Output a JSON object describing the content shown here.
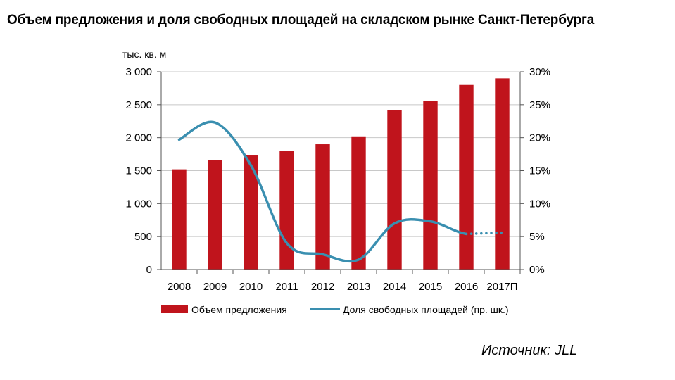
{
  "title": "Объем предложения и доля свободных площадей на складском рынке Санкт-Петербурга",
  "source": "Источник: JLL",
  "chart_data": {
    "type": "bar",
    "categories": [
      "2008",
      "2009",
      "2010",
      "2011",
      "2012",
      "2013",
      "2014",
      "2015",
      "2016",
      "2017П"
    ],
    "y_unit": "тыс. кв. м",
    "ylim": [
      0,
      3000
    ],
    "y_ticks": [
      "0",
      "500",
      "1 000",
      "1 500",
      "2 000",
      "2 500",
      "3 000"
    ],
    "y2lim": [
      0,
      30
    ],
    "y2_ticks": [
      "0%",
      "5%",
      "10%",
      "15%",
      "20%",
      "25%",
      "30%"
    ],
    "grid": "horizontal",
    "legend_position": "bottom",
    "series": [
      {
        "name": "Объем предложения",
        "type": "bar",
        "axis": "left",
        "color": "#c0141c",
        "values": [
          1520,
          1660,
          1740,
          1800,
          1900,
          2020,
          2420,
          2560,
          2800,
          2900
        ]
      },
      {
        "name": "Доля свободных площадей (пр. шк.)",
        "type": "line",
        "axis": "right",
        "color": "#3a8fb0",
        "values": [
          19.7,
          22.3,
          15.8,
          4.0,
          2.3,
          1.5,
          7.0,
          7.3,
          5.4,
          5.6
        ],
        "dotted_last_segment": true
      }
    ]
  }
}
